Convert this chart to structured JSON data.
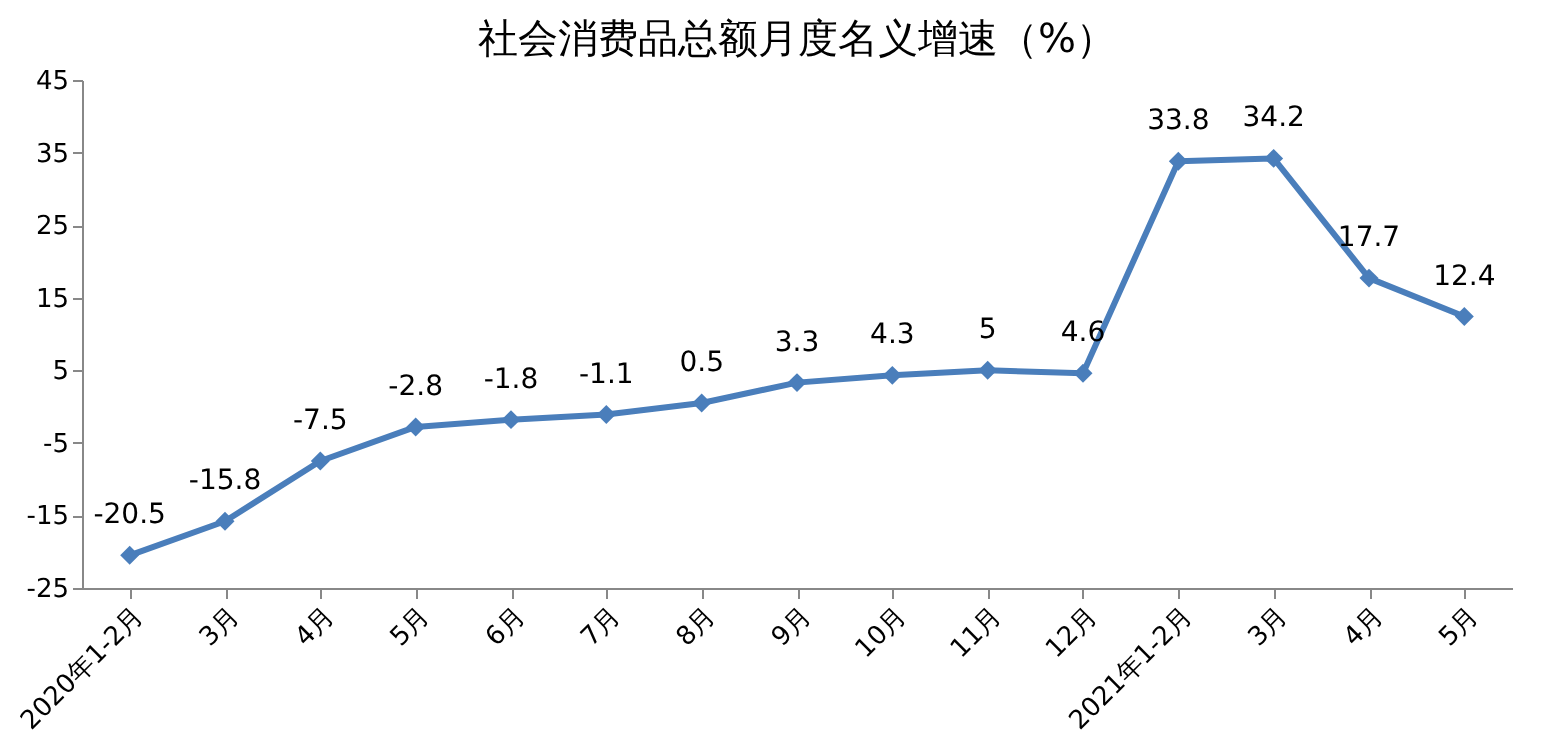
{
  "chart_data": {
    "type": "line",
    "title": "社会消费品总额月度名义增速（%）",
    "categories": [
      "2020年1-2月",
      "3月",
      "4月",
      "5月",
      "6月",
      "7月",
      "8月",
      "9月",
      "10月",
      "11月",
      "12月",
      "2021年1-2月",
      "3月",
      "4月",
      "5月"
    ],
    "series": [
      {
        "color": "#4a7ebb",
        "values": [
          -20.5,
          -15.8,
          -7.5,
          -2.8,
          -1.8,
          -1.1,
          0.5,
          3.3,
          4.3,
          5,
          4.6,
          33.8,
          34.2,
          17.7,
          12.4
        ]
      }
    ],
    "ylim": [
      -25,
      45
    ],
    "yticks": [
      -25,
      -15,
      -5,
      5,
      15,
      25,
      35,
      45
    ],
    "grid": false,
    "marker": "diamond",
    "line_style": "solid",
    "data_labels": true
  }
}
